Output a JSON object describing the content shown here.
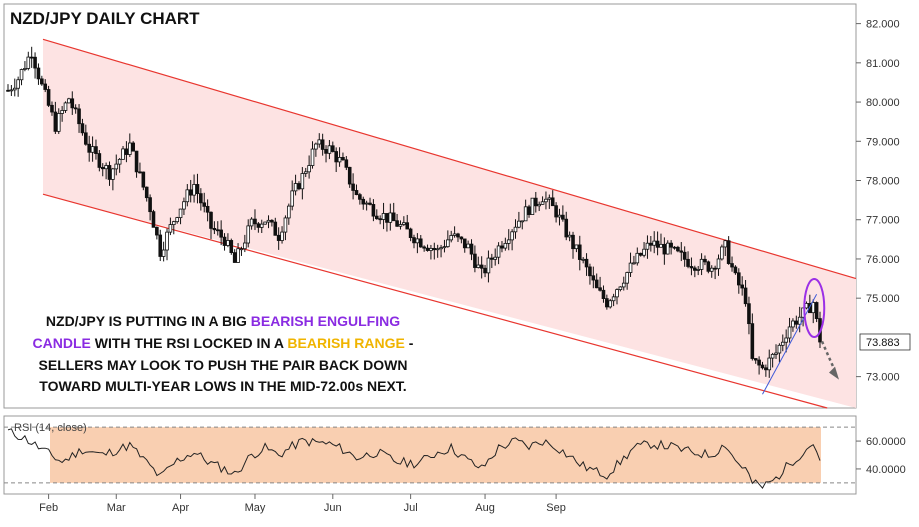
{
  "chart_data": [
    {
      "type": "candlestick",
      "title": "NZD/JPY DAILY CHART",
      "ylim": [
        72.2,
        82.5
      ],
      "y_ticks": [
        "82.000",
        "81.000",
        "80.000",
        "79.000",
        "78.000",
        "77.000",
        "76.000",
        "75.000",
        "73.000"
      ],
      "y_tick_values": [
        82,
        81,
        80,
        79,
        78,
        77,
        76,
        75,
        73
      ],
      "x_ticks": [
        "Feb",
        "Mar",
        "Apr",
        "May",
        "Jun",
        "Jul",
        "Aug",
        "Sep"
      ],
      "last_price_label": "73.883",
      "last_price": 73.883,
      "channel": {
        "upper_start": 81.6,
        "upper_end": 75.5,
        "lower_start": 77.65,
        "lower_end": 72.0
      },
      "path": [
        [
          0,
          80.3
        ],
        [
          3,
          80.6
        ],
        [
          7,
          81.3
        ],
        [
          10,
          80.4
        ],
        [
          14,
          79.4
        ],
        [
          18,
          80.1
        ],
        [
          24,
          78.8
        ],
        [
          30,
          78.2
        ],
        [
          36,
          78.9
        ],
        [
          42,
          77.3
        ],
        [
          45,
          76.2
        ],
        [
          50,
          77.2
        ],
        [
          55,
          77.9
        ],
        [
          60,
          76.8
        ],
        [
          64,
          76.5
        ],
        [
          67,
          75.9
        ],
        [
          72,
          76.9
        ],
        [
          76,
          77.0
        ],
        [
          80,
          76.6
        ],
        [
          84,
          77.6
        ],
        [
          87,
          78.1
        ],
        [
          91,
          78.9
        ],
        [
          95,
          78.8
        ],
        [
          99,
          78.4
        ],
        [
          103,
          77.6
        ],
        [
          109,
          77.2
        ],
        [
          115,
          76.9
        ],
        [
          121,
          76.5
        ],
        [
          127,
          76.2
        ],
        [
          131,
          76.6
        ],
        [
          136,
          76.3
        ],
        [
          140,
          75.6
        ],
        [
          145,
          76.3
        ],
        [
          150,
          76.9
        ],
        [
          154,
          77.3
        ],
        [
          158,
          77.6
        ],
        [
          162,
          77.2
        ],
        [
          166,
          76.5
        ],
        [
          170,
          75.9
        ],
        [
          174,
          75.2
        ],
        [
          177,
          74.9
        ],
        [
          181,
          75.4
        ],
        [
          185,
          75.9
        ],
        [
          190,
          76.4
        ],
        [
          196,
          76.2
        ],
        [
          202,
          75.9
        ],
        [
          208,
          75.8
        ],
        [
          212,
          76.3
        ],
        [
          215,
          75.5
        ],
        [
          218,
          75.0
        ],
        [
          220,
          73.4
        ],
        [
          223,
          73.2
        ],
        [
          227,
          73.6
        ],
        [
          231,
          74.3
        ],
        [
          235,
          74.6
        ],
        [
          238,
          74.9
        ],
        [
          240,
          73.88
        ]
      ],
      "rsi": {
        "label": "RSI (14, close)",
        "ylim": [
          22,
          78
        ],
        "ticks": [
          "60.0000",
          "40.0000"
        ],
        "tick_values": [
          60,
          40
        ],
        "band": [
          30,
          70
        ],
        "path": [
          [
            0,
            67
          ],
          [
            5,
            62
          ],
          [
            10,
            54
          ],
          [
            16,
            45
          ],
          [
            22,
            54
          ],
          [
            28,
            50
          ],
          [
            36,
            57
          ],
          [
            42,
            42
          ],
          [
            45,
            34
          ],
          [
            50,
            46
          ],
          [
            55,
            52
          ],
          [
            60,
            44
          ],
          [
            64,
            40
          ],
          [
            67,
            36
          ],
          [
            72,
            50
          ],
          [
            76,
            55
          ],
          [
            80,
            50
          ],
          [
            84,
            56
          ],
          [
            87,
            60
          ],
          [
            91,
            59
          ],
          [
            95,
            58
          ],
          [
            99,
            54
          ],
          [
            103,
            48
          ],
          [
            109,
            52
          ],
          [
            115,
            45
          ],
          [
            121,
            44
          ],
          [
            127,
            52
          ],
          [
            131,
            55
          ],
          [
            136,
            46
          ],
          [
            140,
            40
          ],
          [
            145,
            55
          ],
          [
            150,
            60
          ],
          [
            154,
            56
          ],
          [
            158,
            60
          ],
          [
            162,
            56
          ],
          [
            166,
            49
          ],
          [
            170,
            42
          ],
          [
            174,
            38
          ],
          [
            177,
            36
          ],
          [
            181,
            45
          ],
          [
            185,
            55
          ],
          [
            190,
            58
          ],
          [
            196,
            56
          ],
          [
            202,
            52
          ],
          [
            208,
            50
          ],
          [
            212,
            58
          ],
          [
            215,
            46
          ],
          [
            218,
            40
          ],
          [
            220,
            30
          ],
          [
            223,
            27
          ],
          [
            227,
            33
          ],
          [
            231,
            44
          ],
          [
            235,
            52
          ],
          [
            238,
            59
          ],
          [
            240,
            46
          ]
        ]
      }
    }
  ],
  "annotation": {
    "lines": [
      [
        {
          "t": "NZD/JPY IS PUTTING IN A BIG ",
          "c": "dark"
        },
        {
          "t": "BEARISH ENGULFING",
          "c": "purple"
        }
      ],
      [
        {
          "t": "CANDLE",
          "c": "purple"
        },
        {
          "t": " WITH THE RSI LOCKED IN A ",
          "c": "dark"
        },
        {
          "t": "BEARISH RANGE",
          "c": "gold"
        },
        {
          "t": " -",
          "c": "dark"
        }
      ],
      [
        {
          "t": "SELLERS MAY LOOK TO PUSH THE PAIR BACK DOWN",
          "c": "dark"
        }
      ],
      [
        {
          "t": "TOWARD MULTI-YEAR LOWS IN THE MID-72.00s NEXT.",
          "c": "dark"
        }
      ]
    ]
  },
  "colors": {
    "dark": "#111111",
    "purple": "#8a2be2",
    "gold": "#f0b400",
    "channel_line": "#e8362f",
    "channel_fill": "#fde3e3",
    "rsi_band": "#f9cfb1",
    "candle": "#111111",
    "trendline": "#3f5ad8",
    "price_label_bg": "#ffffff",
    "arrow": "#666666"
  }
}
